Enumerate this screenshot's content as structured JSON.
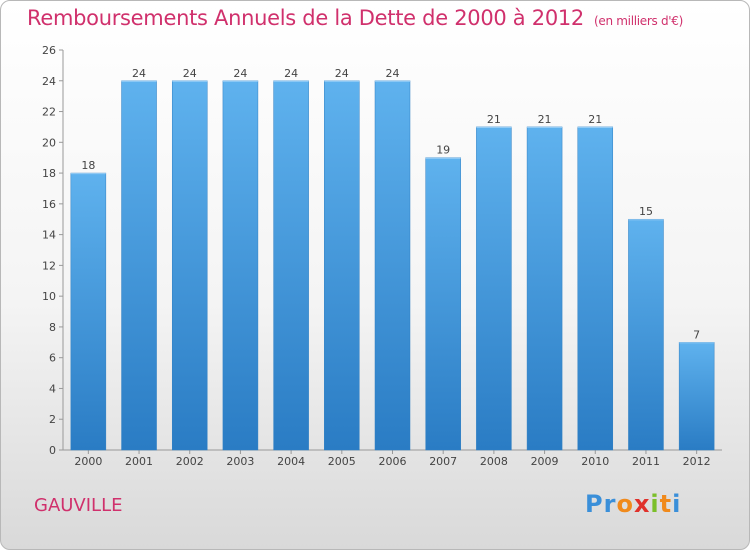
{
  "chart_data": {
    "type": "bar",
    "title": "Remboursements Annuels de la Dette de 2000 à 2012",
    "subtitle": "(en milliers d'€)",
    "categories": [
      "2000",
      "2001",
      "2002",
      "2003",
      "2004",
      "2005",
      "2006",
      "2007",
      "2008",
      "2009",
      "2010",
      "2011",
      "2012"
    ],
    "values": [
      18,
      24,
      24,
      24,
      24,
      24,
      24,
      19,
      21,
      21,
      21,
      15,
      7
    ],
    "yticks": [
      "0",
      "2",
      "4",
      "6",
      "8",
      "10",
      "12",
      "14",
      "16",
      "18",
      "20",
      "22",
      "24",
      "26"
    ],
    "ylim": [
      0,
      26
    ],
    "xlabel": "",
    "ylabel": "",
    "bar_color": "#4a9de0",
    "grid": false
  },
  "commune": "GAUVILLE",
  "logo": {
    "letters": [
      "P",
      "r",
      "o",
      "x",
      "i",
      "t",
      "i"
    ],
    "colors": [
      "#3a8fd9",
      "#3a8fd9",
      "#f08a1c",
      "#e0312b",
      "#7bbf2a",
      "#f08a1c",
      "#3a8fd9"
    ]
  }
}
